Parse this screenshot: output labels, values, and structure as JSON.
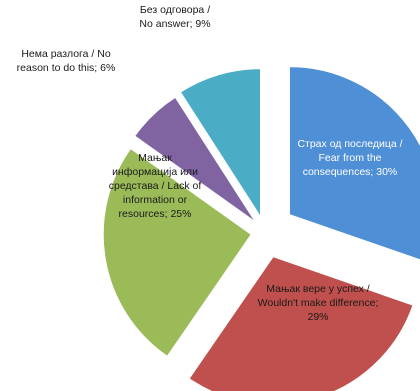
{
  "chart_data": {
    "type": "pie",
    "exploded": true,
    "slices": [
      {
        "label_lines": [
          "Страх од последица /",
          "Fear from the",
          "consequences; 30%"
        ],
        "value": 30,
        "color": "#4f8fd6",
        "text_color": "#ffffff"
      },
      {
        "label_lines": [
          "Мањак вере у успех /",
          "Wouldn't make difference;",
          "29%"
        ],
        "value": 29,
        "color": "#c0504d",
        "text_color": "#1a1a1a"
      },
      {
        "label_lines": [
          "Мањак",
          "информација или",
          "средстава / Lack of",
          "information or",
          "resources; 25%"
        ],
        "value": 25,
        "color": "#9bbb59",
        "text_color": "#1a1a1a"
      },
      {
        "label_lines": [
          "Нема разлога / No",
          "reason to do this; 6%"
        ],
        "value": 6,
        "color": "#8064a2",
        "text_color": "#1a1a1a"
      },
      {
        "label_lines": [
          "Без одговора /",
          "No answer; 9%"
        ],
        "value": 9,
        "color": "#4bacc6",
        "text_color": "#1a1a1a"
      }
    ]
  }
}
